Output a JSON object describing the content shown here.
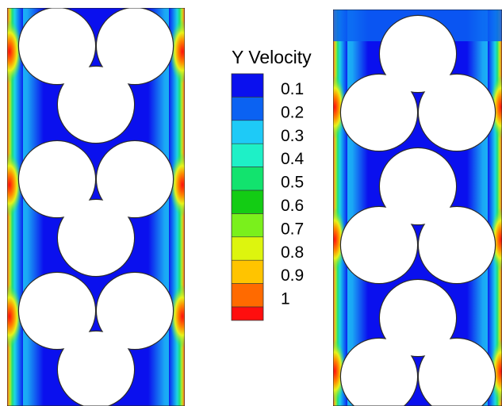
{
  "legend": {
    "title": "Y Velocity",
    "levels": [
      {
        "label": "0.1",
        "value": 0.1,
        "color": "#0a10ee"
      },
      {
        "label": "0.2",
        "value": 0.2,
        "color": "#0b62f2"
      },
      {
        "label": "0.3",
        "value": 0.3,
        "color": "#1ecaf7"
      },
      {
        "label": "0.4",
        "value": 0.4,
        "color": "#1ef0c7"
      },
      {
        "label": "0.5",
        "value": 0.5,
        "color": "#12e36e"
      },
      {
        "label": "0.6",
        "value": 0.6,
        "color": "#13cc14"
      },
      {
        "label": "0.7",
        "value": 0.7,
        "color": "#7af01c"
      },
      {
        "label": "0.8",
        "value": 0.8,
        "color": "#ddf50e"
      },
      {
        "label": "0.9",
        "value": 0.9,
        "color": "#ffc400"
      },
      {
        "label": "1",
        "value": 1.0,
        "color": "#ff6a00"
      }
    ],
    "max_color": "#ff0e0e"
  },
  "panels": [
    {
      "name": "left-panel",
      "clusters": 3,
      "cluster_orientation": "two-up-one-down"
    },
    {
      "name": "right-panel",
      "clusters": 3,
      "cluster_orientation": "one-up-two-down"
    }
  ]
}
